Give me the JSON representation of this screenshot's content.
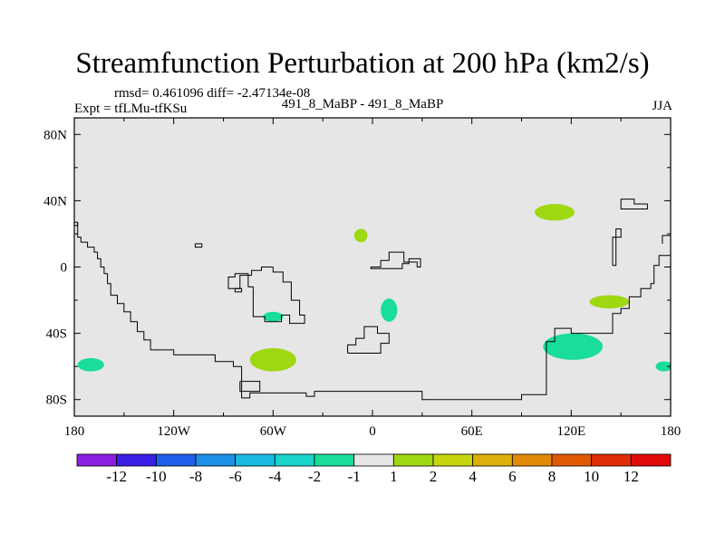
{
  "title": "Streamfunction Perturbation at 200 hPa (km2/s)",
  "subtitle_left_top": "rmsd= 0.461096 diff= -2.47134e-08",
  "subtitle_left": "Expt = tfLMu-tfKSu",
  "subtitle_center": "491_8_MaBP - 491_8_MaBP",
  "subtitle_right": "JJA",
  "colors": {
    "land_background": "#e6e6e6",
    "coastline": "#000000",
    "colorbar": [
      "#8a1fe0",
      "#3b1ee6",
      "#1f5ee8",
      "#1c90e6",
      "#19b9e0",
      "#19d4c8",
      "#19dd98",
      "#e6e6e6",
      "#9ed810",
      "#c6d60e",
      "#dcb00a",
      "#e08a08",
      "#e05a06",
      "#e02e06",
      "#e00a0a"
    ]
  },
  "chart_data": {
    "type": "heatmap",
    "title": "Streamfunction Perturbation at 200 hPa (km2/s)",
    "xlabel": "",
    "ylabel": "",
    "xlim": [
      -180,
      180
    ],
    "ylim": [
      -90,
      90
    ],
    "x_ticks": [
      {
        "value": -180,
        "label": "180"
      },
      {
        "value": -120,
        "label": "120W"
      },
      {
        "value": -60,
        "label": "60W"
      },
      {
        "value": 0,
        "label": "0"
      },
      {
        "value": 60,
        "label": "60E"
      },
      {
        "value": 120,
        "label": "120E"
      },
      {
        "value": 180,
        "label": "180"
      }
    ],
    "y_ticks": [
      {
        "value": 80,
        "label": "80N"
      },
      {
        "value": 40,
        "label": "40N"
      },
      {
        "value": 0,
        "label": "0"
      },
      {
        "value": -40,
        "label": "40S"
      },
      {
        "value": -80,
        "label": "80S"
      }
    ],
    "contour_levels": [
      -12,
      -10,
      -8,
      -6,
      -4,
      -2,
      -1,
      1,
      2,
      4,
      6,
      8,
      10,
      12
    ],
    "colorbar_labels": [
      "-12",
      "-10",
      "-8",
      "-6",
      "-4",
      "-2",
      "-1",
      "1",
      "2",
      "4",
      "6",
      "8",
      "10",
      "12"
    ],
    "anomaly_regions": [
      {
        "lon_center": -170,
        "lat_center": -59,
        "lon_half_width": 8,
        "lat_half_width": 4,
        "level": "-2 to -1",
        "color": "#19dd98"
      },
      {
        "lon_center": -60,
        "lat_center": -56,
        "lon_half_width": 14,
        "lat_half_width": 7,
        "level": "1 to 2",
        "color": "#9ed810"
      },
      {
        "lon_center": -60,
        "lat_center": -30,
        "lon_half_width": 6,
        "lat_half_width": 3,
        "level": "-2 to -1",
        "color": "#19dd98"
      },
      {
        "lon_center": -7,
        "lat_center": 19,
        "lon_half_width": 4,
        "lat_half_width": 4,
        "level": "1 to 2",
        "color": "#9ed810"
      },
      {
        "lon_center": 10,
        "lat_center": -26,
        "lon_half_width": 5,
        "lat_half_width": 7,
        "level": "-2 to -1",
        "color": "#19dd98"
      },
      {
        "lon_center": 110,
        "lat_center": 33,
        "lon_half_width": 12,
        "lat_half_width": 5,
        "level": "1 to 2",
        "color": "#9ed810"
      },
      {
        "lon_center": 143,
        "lat_center": -21,
        "lon_half_width": 12,
        "lat_half_width": 4,
        "level": "1 to 2",
        "color": "#9ed810"
      },
      {
        "lon_center": 121,
        "lat_center": -48,
        "lon_half_width": 18,
        "lat_half_width": 8,
        "level": "-2 to -1",
        "color": "#19dd98"
      },
      {
        "lon_center": 176,
        "lat_center": -60,
        "lon_half_width": 5,
        "lat_half_width": 3,
        "level": "-2 to -1",
        "color": "#19dd98"
      }
    ],
    "coastlines": [
      [
        [
          -180,
          27
        ],
        [
          -178,
          27
        ],
        [
          -178,
          18
        ],
        [
          -176,
          18
        ],
        [
          -176,
          15
        ],
        [
          -172,
          15
        ],
        [
          -172,
          12
        ],
        [
          -168,
          12
        ],
        [
          -168,
          9
        ],
        [
          -166,
          9
        ],
        [
          -166,
          5
        ],
        [
          -164,
          5
        ],
        [
          -164,
          0
        ],
        [
          -162,
          0
        ],
        [
          -162,
          -4
        ],
        [
          -160,
          -4
        ],
        [
          -160,
          -10
        ],
        [
          -158,
          -10
        ],
        [
          -158,
          -17
        ],
        [
          -154,
          -17
        ],
        [
          -154,
          -22
        ],
        [
          -150,
          -22
        ],
        [
          -150,
          -27
        ],
        [
          -146,
          -27
        ],
        [
          -146,
          -33
        ],
        [
          -142,
          -33
        ],
        [
          -142,
          -39
        ],
        [
          -138,
          -39
        ],
        [
          -138,
          -44
        ],
        [
          -134,
          -44
        ],
        [
          -134,
          -50
        ],
        [
          -120,
          -50
        ],
        [
          -120,
          -53
        ],
        [
          -95,
          -53
        ],
        [
          -95,
          -57
        ],
        [
          -84,
          -57
        ],
        [
          -84,
          -60
        ],
        [
          -79,
          -60
        ],
        [
          -79,
          -79
        ],
        [
          -74,
          -79
        ],
        [
          -74,
          -76
        ],
        [
          -40,
          -76
        ],
        [
          -40,
          -78
        ],
        [
          -35,
          -78
        ],
        [
          -35,
          -75
        ],
        [
          30,
          -75
        ],
        [
          30,
          -80
        ],
        [
          90,
          -80
        ],
        [
          90,
          -77
        ],
        [
          105,
          -77
        ],
        [
          105,
          -45
        ],
        [
          110,
          -45
        ],
        [
          110,
          -37
        ],
        [
          120,
          -37
        ],
        [
          120,
          -40
        ],
        [
          145,
          -40
        ],
        [
          145,
          -28
        ],
        [
          150,
          -28
        ],
        [
          150,
          -25
        ],
        [
          155,
          -25
        ],
        [
          155,
          -18
        ],
        [
          162,
          -18
        ],
        [
          162,
          -13
        ],
        [
          168,
          -13
        ],
        [
          168,
          -10
        ],
        [
          170,
          -10
        ],
        [
          170,
          1
        ],
        [
          173,
          1
        ],
        [
          173,
          7
        ],
        [
          180,
          7
        ]
      ],
      [
        [
          -60,
          0
        ],
        [
          -60,
          -3
        ],
        [
          -54,
          -3
        ],
        [
          -54,
          -9
        ],
        [
          -49,
          -9
        ],
        [
          -49,
          -20
        ],
        [
          -44,
          -20
        ],
        [
          -44,
          -29
        ],
        [
          -41,
          -29
        ],
        [
          -41,
          -34
        ],
        [
          -50,
          -34
        ],
        [
          -50,
          -29
        ],
        [
          -55,
          -29
        ],
        [
          -55,
          -33
        ],
        [
          -65,
          -33
        ],
        [
          -65,
          -30
        ],
        [
          -72,
          -30
        ],
        [
          -72,
          -12
        ],
        [
          -75,
          -12
        ],
        [
          -75,
          -4
        ],
        [
          -83,
          -4
        ],
        [
          -83,
          -6
        ],
        [
          -87,
          -6
        ],
        [
          -87,
          -13
        ],
        [
          -80,
          -13
        ],
        [
          -80,
          -5
        ],
        [
          -73,
          -5
        ],
        [
          -73,
          -2
        ],
        [
          -67,
          -2
        ],
        [
          -67,
          0
        ],
        [
          -60,
          0
        ]
      ],
      [
        [
          -1,
          0
        ],
        [
          5,
          0
        ],
        [
          5,
          4
        ],
        [
          10,
          4
        ],
        [
          10,
          9
        ],
        [
          19,
          9
        ],
        [
          19,
          3
        ],
        [
          27,
          3
        ],
        [
          27,
          0
        ],
        [
          29,
          0
        ],
        [
          29,
          5
        ],
        [
          22,
          5
        ],
        [
          22,
          2
        ],
        [
          18,
          2
        ],
        [
          18,
          -1
        ],
        [
          -1,
          -1
        ],
        [
          -1,
          0
        ]
      ],
      [
        [
          -15,
          -52
        ],
        [
          -15,
          -47
        ],
        [
          -10,
          -47
        ],
        [
          -10,
          -43
        ],
        [
          -5,
          -43
        ],
        [
          -5,
          -36
        ],
        [
          3,
          -36
        ],
        [
          3,
          -40
        ],
        [
          10,
          -40
        ],
        [
          10,
          -46
        ],
        [
          5,
          -46
        ],
        [
          5,
          -52
        ],
        [
          -15,
          -52
        ]
      ],
      [
        [
          145,
          1
        ],
        [
          145,
          18
        ],
        [
          150,
          18
        ],
        [
          150,
          23
        ],
        [
          147,
          23
        ],
        [
          147,
          1
        ],
        [
          145,
          1
        ]
      ],
      [
        [
          150,
          38
        ],
        [
          150,
          41
        ],
        [
          158,
          41
        ],
        [
          158,
          38
        ],
        [
          166,
          38
        ],
        [
          166,
          35
        ],
        [
          150,
          35
        ],
        [
          150,
          38
        ]
      ],
      [
        [
          -80,
          -69
        ],
        [
          -80,
          -75
        ],
        [
          -68,
          -75
        ],
        [
          -68,
          -69
        ],
        [
          -80,
          -69
        ]
      ],
      [
        [
          -107,
          14
        ],
        [
          -107,
          12
        ],
        [
          -103,
          12
        ],
        [
          -103,
          14
        ],
        [
          -107,
          14
        ]
      ],
      [
        [
          -83,
          -13
        ],
        [
          -83,
          -15
        ],
        [
          -79,
          -15
        ],
        [
          -79,
          -13
        ],
        [
          -83,
          -13
        ]
      ],
      [
        [
          -180,
          25
        ],
        [
          -178,
          25
        ],
        [
          -178,
          27
        ]
      ],
      [
        [
          175,
          14
        ],
        [
          175,
          19
        ],
        [
          180,
          19
        ]
      ]
    ]
  }
}
